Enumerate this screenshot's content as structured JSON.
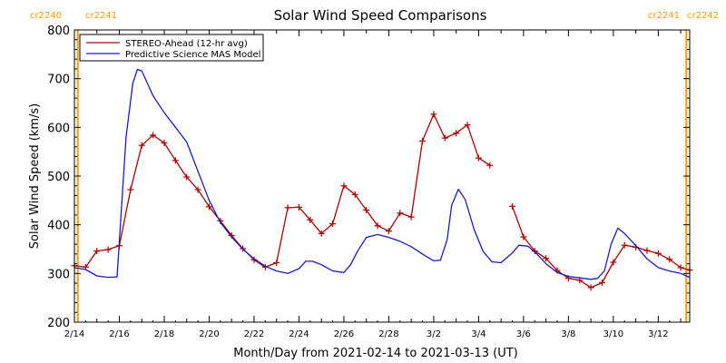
{
  "chart_data": {
    "type": "line",
    "title": "Solar Wind Speed Comparisons",
    "xlabel": "Month/Day from 2021-02-14 to 2021-03-13 (UT)",
    "ylabel": "Solar Wind Speed (km/s)",
    "ylim": [
      200,
      800
    ],
    "xlim": [
      0,
      27.4
    ],
    "yticks": [
      200,
      300,
      400,
      500,
      600,
      700,
      800
    ],
    "xticks": [
      {
        "x": 0,
        "label": "2/14"
      },
      {
        "x": 2,
        "label": "2/16"
      },
      {
        "x": 4,
        "label": "2/18"
      },
      {
        "x": 6,
        "label": "2/20"
      },
      {
        "x": 8,
        "label": "2/22"
      },
      {
        "x": 10,
        "label": "2/24"
      },
      {
        "x": 12,
        "label": "2/26"
      },
      {
        "x": 14,
        "label": "2/28"
      },
      {
        "x": 16,
        "label": "3/2"
      },
      {
        "x": 18,
        "label": "3/4"
      },
      {
        "x": 20,
        "label": "3/6"
      },
      {
        "x": 22,
        "label": "3/8"
      },
      {
        "x": 24,
        "label": "3/10"
      },
      {
        "x": 26,
        "label": "3/12"
      }
    ],
    "carrington_markers": [
      {
        "x": 0.15,
        "label_left": "cr2240",
        "label_right": "cr2241"
      },
      {
        "x": 27.25,
        "label_left": "cr2241",
        "label_right": "cr2242"
      }
    ],
    "legend": {
      "placement": "top-left"
    },
    "colors": {
      "stereo": "#b00000",
      "model": "#1a1acc",
      "marker": "#ff9900"
    },
    "series": [
      {
        "name": "STEREO-Ahead (12-hr avg)",
        "color": "#b00000",
        "segments": [
          [
            [
              0,
              316
            ],
            [
              0.5,
              313
            ],
            [
              1.0,
              346
            ],
            [
              1.5,
              349
            ],
            [
              2.0,
              357
            ],
            [
              2.5,
              472
            ],
            [
              3.0,
              563
            ],
            [
              3.5,
              584
            ],
            [
              4.0,
              568
            ],
            [
              4.5,
              532
            ],
            [
              5.0,
              498
            ],
            [
              5.5,
              472
            ],
            [
              6.0,
              437
            ],
            [
              6.5,
              408
            ],
            [
              7.0,
              378
            ],
            [
              7.5,
              351
            ],
            [
              8.0,
              328
            ],
            [
              8.5,
              313
            ],
            [
              9.0,
              322
            ],
            [
              9.5,
              435
            ],
            [
              10.0,
              436
            ],
            [
              10.5,
              410
            ],
            [
              11.0,
              382
            ],
            [
              11.5,
              402
            ],
            [
              12.0,
              480
            ],
            [
              12.5,
              462
            ],
            [
              13.0,
              430
            ],
            [
              13.5,
              398
            ],
            [
              14.0,
              387
            ],
            [
              14.5,
              424
            ],
            [
              15.0,
              416
            ],
            [
              15.5,
              572
            ],
            [
              16.0,
              627
            ],
            [
              16.5,
              578
            ],
            [
              17.0,
              588
            ],
            [
              17.5,
              605
            ],
            [
              18.0,
              537
            ],
            [
              18.5,
              522
            ]
          ],
          [
            [
              19.5,
              438
            ],
            [
              20.0,
              375
            ],
            [
              20.5,
              346
            ],
            [
              21.0,
              331
            ],
            [
              21.5,
              306
            ],
            [
              22.0,
              290
            ],
            [
              22.5,
              286
            ],
            [
              23.0,
              271
            ],
            [
              23.5,
              281
            ],
            [
              24.0,
              323
            ],
            [
              24.5,
              358
            ],
            [
              25.0,
              354
            ],
            [
              25.5,
              347
            ],
            [
              26.0,
              341
            ],
            [
              26.5,
              329
            ],
            [
              27.0,
              312
            ],
            [
              27.4,
              307
            ]
          ]
        ]
      },
      {
        "name": "Predictive Science MAS Model",
        "color": "#1a1acc",
        "segments": [
          [
            [
              0,
              312
            ],
            [
              0.5,
              308
            ],
            [
              1.0,
              295
            ],
            [
              1.5,
              292
            ],
            [
              1.9,
              293
            ],
            [
              2.3,
              580
            ],
            [
              2.6,
              690
            ],
            [
              2.8,
              719
            ],
            [
              3.0,
              716
            ],
            [
              3.5,
              665
            ],
            [
              4.0,
              630
            ],
            [
              4.5,
              600
            ],
            [
              5.0,
              570
            ],
            [
              5.5,
              510
            ],
            [
              6.0,
              450
            ],
            [
              6.5,
              405
            ],
            [
              7.0,
              375
            ],
            [
              7.5,
              350
            ],
            [
              8.0,
              330
            ],
            [
              8.5,
              315
            ],
            [
              9.0,
              305
            ],
            [
              9.5,
              300
            ],
            [
              10.0,
              310
            ],
            [
              10.3,
              325
            ],
            [
              10.6,
              325
            ],
            [
              11.0,
              318
            ],
            [
              11.5,
              305
            ],
            [
              12.0,
              302
            ],
            [
              12.3,
              318
            ],
            [
              12.6,
              345
            ],
            [
              13.0,
              374
            ],
            [
              13.5,
              380
            ],
            [
              14.0,
              374
            ],
            [
              14.5,
              366
            ],
            [
              15.0,
              355
            ],
            [
              15.5,
              340
            ],
            [
              16.0,
              326
            ],
            [
              16.3,
              327
            ],
            [
              16.6,
              370
            ],
            [
              16.8,
              440
            ],
            [
              17.1,
              473
            ],
            [
              17.4,
              452
            ],
            [
              17.8,
              390
            ],
            [
              18.2,
              345
            ],
            [
              18.6,
              324
            ],
            [
              19.0,
              322
            ],
            [
              19.5,
              342
            ],
            [
              19.8,
              358
            ],
            [
              20.2,
              356
            ],
            [
              20.6,
              340
            ],
            [
              21.0,
              320
            ],
            [
              21.5,
              302
            ],
            [
              22.0,
              294
            ],
            [
              22.5,
              291
            ],
            [
              23.0,
              288
            ],
            [
              23.3,
              290
            ],
            [
              23.6,
              305
            ],
            [
              23.9,
              360
            ],
            [
              24.2,
              393
            ],
            [
              24.5,
              382
            ],
            [
              25.0,
              357
            ],
            [
              25.5,
              330
            ],
            [
              26.0,
              312
            ],
            [
              26.5,
              305
            ],
            [
              27.0,
              300
            ],
            [
              27.4,
              292
            ]
          ]
        ]
      }
    ]
  }
}
